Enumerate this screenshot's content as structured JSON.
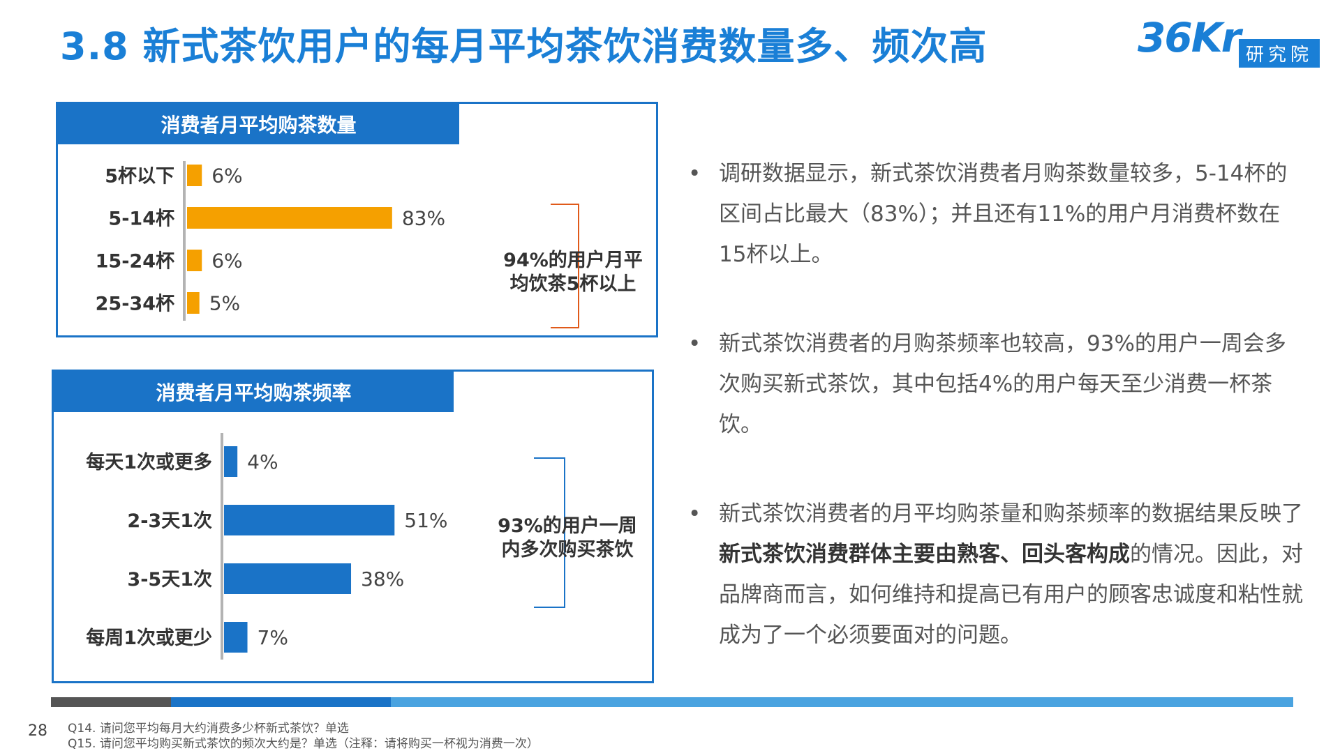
{
  "page": {
    "title": "3.8 新式茶饮用户的每月平均茶饮消费数量多、频次高",
    "logo_text": "36Kr",
    "logo_sub": "研究院",
    "page_number": "28"
  },
  "colors": {
    "primary": "#1a73c7",
    "bar_orange": "#f5a000",
    "bar_blue": "#1a73c7"
  },
  "panels": [
    {
      "header": "消费者月平均购茶数量",
      "note_lines": [
        "94%的用户月平",
        "均饮茶5杯以上"
      ]
    },
    {
      "header": "消费者月平均购茶频率",
      "note_lines": [
        "93%的用户一周",
        "内多次购买茶饮"
      ]
    }
  ],
  "chart_data": [
    {
      "type": "bar",
      "orientation": "horizontal",
      "title": "消费者月平均购茶数量",
      "categories": [
        "5杯以下",
        "5-14杯",
        "15-24杯",
        "25-34杯"
      ],
      "values": [
        6,
        83,
        6,
        5
      ],
      "value_labels": [
        "6%",
        "83%",
        "6%",
        "5%"
      ],
      "unit": "%",
      "xlim": [
        0,
        100
      ],
      "bar_color": "#f5a000",
      "annotation": "94%的用户月平均饮茶5杯以上"
    },
    {
      "type": "bar",
      "orientation": "horizontal",
      "title": "消费者月平均购茶频率",
      "categories": [
        "每天1次或更多",
        "2-3天1次",
        "3-5天1次",
        "每周1次或更少"
      ],
      "values": [
        4,
        51,
        38,
        7
      ],
      "value_labels": [
        "4%",
        "51%",
        "38%",
        "7%"
      ],
      "unit": "%",
      "xlim": [
        0,
        100
      ],
      "bar_color": "#1a73c7",
      "annotation": "93%的用户一周内多次购买茶饮"
    }
  ],
  "bullets": [
    {
      "text": "调研数据显示，新式茶饮消费者月购茶数量较多，5-14杯的区间占比最大（83%）；并且还有11%的用户月消费杯数在15杯以上。"
    },
    {
      "text": "新式茶饮消费者的月购茶频率也较高，93%的用户一周会多次购买新式茶饮，其中包括4%的用户每天至少消费一杯茶饮。"
    },
    {
      "pre": "新式茶饮消费者的月平均购茶量和购茶频率的数据结果反映了",
      "bold": "新式茶饮消费群体主要由熟客、回头客构成",
      "post": "的情况。因此，对品牌商而言，如何维持和提高已有用户的顾客忠诚度和粘性就成为了一个必须要面对的问题。"
    }
  ],
  "bullet_marker": "•",
  "footnotes": [
    "Q14. 请问您平均每月大约消费多少杯新式茶饮？单选",
    "Q15. 请问您平均购买新式茶饮的频次大约是？单选（注释：请将购买一杯视为消费一次）"
  ]
}
